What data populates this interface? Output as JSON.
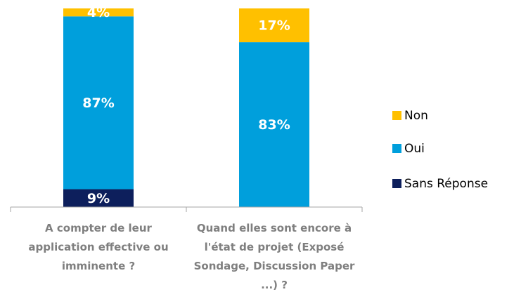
{
  "chart_data": {
    "type": "stacked_bar",
    "categories": [
      "A compter de leur application effective ou imminente ?",
      "Quand elles sont encore à l'état de projet (Exposé Sondage, Discussion Paper ...) ?"
    ],
    "series": [
      {
        "name": "Sans Réponse",
        "color": "#0d1f5c",
        "values": [
          9,
          0
        ],
        "value_labels": [
          "9%",
          null
        ]
      },
      {
        "name": "Oui",
        "color": "#009fdc",
        "values": [
          87,
          83
        ],
        "value_labels": [
          "87%",
          "83%"
        ]
      },
      {
        "name": "Non",
        "color": "#ffc000",
        "values": [
          4,
          17
        ],
        "value_labels": [
          "4%",
          "17%"
        ]
      }
    ]
  }
}
